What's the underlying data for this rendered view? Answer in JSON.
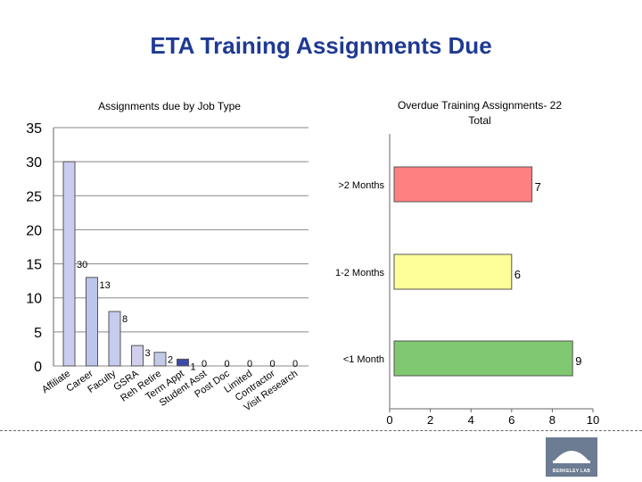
{
  "slide": {
    "title": "ETA Training Assignments Due",
    "logo_text": "BERKELEY LAB"
  },
  "chart_data": [
    {
      "type": "bar",
      "title": "Assignments due by Job Type",
      "categories": [
        "Affiliate",
        "Career",
        "Faculty",
        "GSRA",
        "Reh Retire",
        "Term Appt",
        "Student Asst",
        "Post Doc",
        "Limited",
        "Contractor",
        "Visit Research"
      ],
      "values": [
        30,
        13,
        8,
        3,
        2,
        1,
        0,
        0,
        0,
        0,
        0
      ],
      "data_labels": [
        "30",
        "13",
        "8",
        "3",
        "2",
        "1",
        "0",
        "0",
        "0",
        "0",
        "0"
      ],
      "ylim": [
        0,
        35
      ],
      "yticks": [
        "0",
        "5",
        "10",
        "15",
        "20",
        "25",
        "30",
        "35"
      ],
      "grid": true,
      "colors": [
        "#ccccf0",
        "#bcc6ec",
        "#c6ccee",
        "#d0d0ec",
        "#c2cae6",
        "#3b4aa8",
        "#ccccee",
        "#ccccee",
        "#ccccee",
        "#ccccee",
        "#ccccee"
      ]
    },
    {
      "type": "bar",
      "orientation": "horizontal",
      "title": "Overdue Training Assignments- 22 Total",
      "categories": [
        ">2 Months",
        "1-2 Months",
        "<1 Month"
      ],
      "values": [
        7,
        6,
        9
      ],
      "data_labels": [
        "7",
        "6",
        "9"
      ],
      "xlim": [
        0,
        10
      ],
      "xticks": [
        "0",
        "2",
        "4",
        "6",
        "8",
        "10"
      ],
      "colors": [
        "#ff8080",
        "#ffff99",
        "#80c870"
      ]
    }
  ]
}
